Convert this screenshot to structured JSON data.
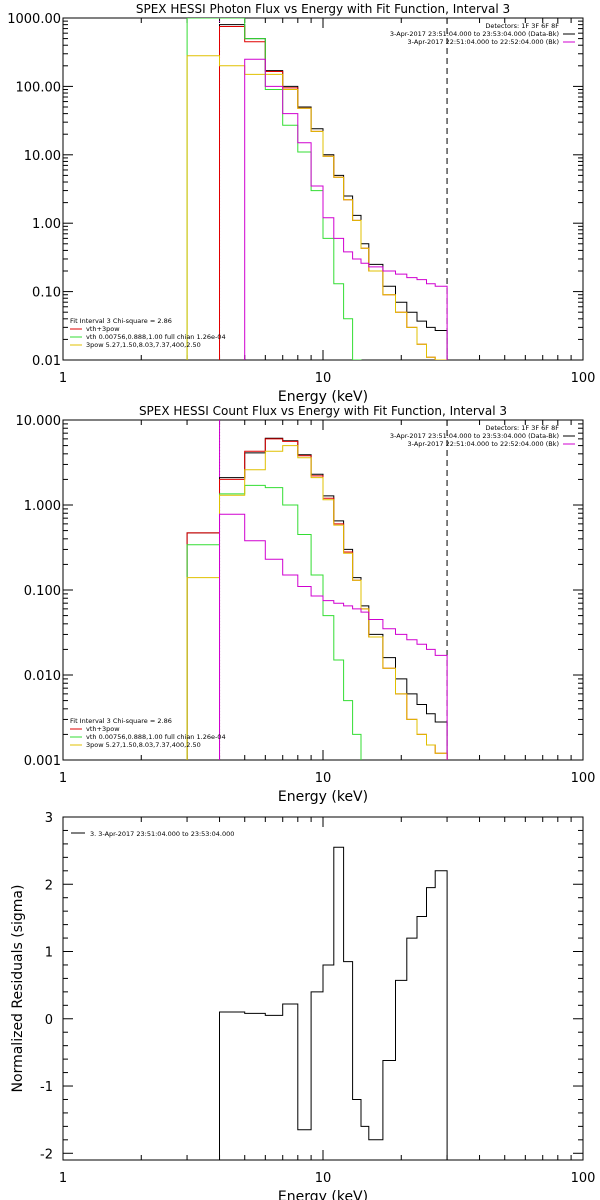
{
  "colors": {
    "black": "#000000",
    "red": "#e00000",
    "green": "#33dd33",
    "magenta": "#d000d0",
    "yellow": "#e0c000"
  },
  "chart_data": [
    {
      "type": "line",
      "title": "SPEX HESSI Photon Flux vs Energy with Fit Function, Interval 3",
      "xlabel": "Energy (keV)",
      "ylabel": "",
      "xscale": "log",
      "yscale": "log",
      "xlim": [
        1,
        100
      ],
      "ylim": [
        0.01,
        1000
      ],
      "x_ticks": [
        "1",
        "10",
        "100"
      ],
      "y_ticks": [
        "0.01",
        "0.10",
        "1.00",
        "10.00",
        "100.00",
        "1000.00"
      ],
      "vlines": [
        {
          "x": 4.0,
          "style": "dotted",
          "color": "magenta"
        },
        {
          "x": 30.0,
          "style": "dashed",
          "color": "black"
        }
      ],
      "legend_top_right": [
        "Detectors: 1F 3F 6F 8F",
        "3-Apr-2017 23:51:04.000 to 23:53:04.000 (Data-Bk)",
        "3-Apr-2017 22:51:04.000 to 22:52:04.000 (Bk)"
      ],
      "legend_bottom_left": [
        "Fit Interval 3   Chi-square = 2.86",
        "vth+3pow",
        "vth 0.00756,0.888,1.00   full chian 1.26e-04",
        "3pow 5.27,1.50,8.03,7.37,400,2.50"
      ],
      "series": [
        {
          "name": "",
          "color": "black",
          "bin_edges": [
            4,
            5,
            6,
            7,
            8,
            9,
            10,
            11,
            12,
            13,
            14,
            15,
            17,
            19,
            21,
            23,
            25,
            27,
            30
          ],
          "values": [
            800,
            500,
            170,
            100,
            50,
            24,
            10,
            5,
            2.5,
            1.3,
            0.5,
            0.25,
            0.12,
            0.07,
            0.05,
            0.037,
            0.03,
            0.027
          ]
        },
        {
          "name": "",
          "color": "red",
          "bin_edges": [
            4,
            5,
            6,
            7,
            8,
            9,
            10,
            11,
            12,
            13,
            14,
            15,
            17,
            19,
            21,
            23,
            25,
            27,
            30
          ],
          "values": [
            750,
            450,
            165,
            95,
            48,
            22,
            9.5,
            4.7,
            2.2,
            1.1,
            0.43,
            0.2,
            0.09,
            0.05,
            0.03,
            0.017,
            0.011,
            0.008
          ]
        },
        {
          "name": "",
          "color": "green",
          "bin_edges": [
            3,
            4,
            5,
            6,
            7,
            8,
            9,
            10,
            11,
            12,
            13,
            14
          ],
          "values": [
            2000,
            1200,
            500,
            90,
            27,
            11,
            3,
            0.6,
            0.13,
            0.04,
            0.007
          ]
        },
        {
          "name": "",
          "color": "yellow",
          "bin_edges": [
            3,
            4,
            5,
            6,
            7,
            8,
            9,
            10,
            11,
            12,
            13,
            14,
            15,
            17,
            19,
            21,
            23,
            25,
            27,
            30
          ],
          "values": [
            280,
            200,
            150,
            150,
            90,
            48,
            22,
            9.5,
            4.7,
            2.2,
            1.1,
            0.43,
            0.2,
            0.09,
            0.05,
            0.03,
            0.017,
            0.011,
            0.008
          ]
        },
        {
          "name": "",
          "color": "magenta",
          "bin_edges": [
            5,
            6,
            7,
            8,
            9,
            10,
            11,
            12,
            13,
            14,
            15,
            17,
            19,
            21,
            23,
            25,
            27,
            30
          ],
          "values": [
            250,
            100,
            40,
            15,
            3.5,
            1.2,
            0.6,
            0.38,
            0.3,
            0.26,
            0.23,
            0.2,
            0.18,
            0.16,
            0.15,
            0.13,
            0.12
          ]
        }
      ]
    },
    {
      "type": "line",
      "title": "SPEX HESSI Count Flux vs Energy with Fit Function, Interval 3",
      "xlabel": "Energy (keV)",
      "ylabel": "",
      "xscale": "log",
      "yscale": "log",
      "xlim": [
        1,
        100
      ],
      "ylim": [
        0.001,
        10
      ],
      "x_ticks": [
        "1",
        "10",
        "100"
      ],
      "y_ticks": [
        "0.001",
        "0.010",
        "0.100",
        "1.000",
        "10.000"
      ],
      "vlines": [
        {
          "x": 4.0,
          "style": "dotted",
          "color": "black"
        },
        {
          "x": 4.0,
          "style": "solid",
          "color": "magenta"
        },
        {
          "x": 30.0,
          "style": "dashed",
          "color": "black"
        }
      ],
      "legend_top_right": [
        "Detectors: 1F 3F 6F 8F",
        "3-Apr-2017 23:51:04.000 to 23:53:04.000 (Data-Bk)",
        "3-Apr-2017 22:51:04.000 to 22:52:04.000 (Bk)"
      ],
      "legend_bottom_left": [
        "Fit Interval 3   Chi-square = 2.86",
        "vth+3pow",
        "vth 0.00756,0.888,1.00   full chian 1.26e-04",
        "3pow 5.27,1.50,8.03,7.37,400,2.50"
      ],
      "series": [
        {
          "name": "",
          "color": "black",
          "bin_edges": [
            3,
            4,
            5,
            6,
            7,
            8,
            9,
            10,
            11,
            12,
            13,
            14,
            15,
            17,
            19,
            21,
            23,
            25,
            27,
            30
          ],
          "values": [
            0.47,
            2.1,
            4.1,
            6.1,
            5.7,
            3.9,
            2.3,
            1.28,
            0.65,
            0.3,
            0.14,
            0.065,
            0.03,
            0.016,
            0.009,
            0.006,
            0.0045,
            0.0035,
            0.0028
          ]
        },
        {
          "name": "",
          "color": "red",
          "bin_edges": [
            3,
            4,
            5,
            6,
            7,
            8,
            9,
            10,
            11,
            12,
            13,
            14,
            15,
            17,
            19,
            21,
            23,
            25,
            27,
            30
          ],
          "values": [
            0.47,
            2.0,
            4.3,
            6.0,
            5.6,
            3.8,
            2.2,
            1.2,
            0.6,
            0.28,
            0.13,
            0.06,
            0.028,
            0.012,
            0.006,
            0.003,
            0.002,
            0.0015,
            0.0012
          ]
        },
        {
          "name": "",
          "color": "green",
          "bin_edges": [
            3,
            4,
            5,
            6,
            7,
            8,
            9,
            10,
            11,
            12,
            13,
            14
          ],
          "values": [
            0.34,
            1.35,
            1.7,
            1.6,
            1.0,
            0.45,
            0.15,
            0.05,
            0.015,
            0.005,
            0.002
          ]
        },
        {
          "name": "",
          "color": "yellow",
          "bin_edges": [
            3,
            4,
            5,
            6,
            7,
            8,
            9,
            10,
            11,
            12,
            13,
            14,
            15,
            17,
            19,
            21,
            23,
            25,
            27,
            30
          ],
          "values": [
            0.14,
            1.3,
            2.6,
            4.3,
            5.0,
            3.6,
            2.1,
            1.15,
            0.58,
            0.27,
            0.13,
            0.06,
            0.028,
            0.012,
            0.006,
            0.003,
            0.002,
            0.0015,
            0.0012
          ]
        },
        {
          "name": "",
          "color": "magenta",
          "bin_edges": [
            4,
            5,
            6,
            7,
            8,
            9,
            10,
            11,
            12,
            13,
            14,
            15,
            17,
            19,
            21,
            23,
            25,
            27,
            30
          ],
          "values": [
            0.78,
            0.38,
            0.23,
            0.15,
            0.11,
            0.085,
            0.075,
            0.07,
            0.065,
            0.06,
            0.055,
            0.045,
            0.035,
            0.03,
            0.026,
            0.023,
            0.02,
            0.017
          ]
        }
      ]
    },
    {
      "type": "line",
      "title": "",
      "xlabel": "Energy (keV)",
      "ylabel": "Normalized Residuals (sigma)",
      "xscale": "log",
      "yscale": "linear",
      "xlim": [
        1,
        100
      ],
      "ylim": [
        -2.1,
        3.0
      ],
      "x_ticks": [
        "1",
        "10",
        "100"
      ],
      "y_ticks": [
        "-2",
        "-1",
        "0",
        "1",
        "2",
        "3"
      ],
      "legend_top_left": [
        "3.  3-Apr-2017 23:51:04.000 to 23:53:04.000"
      ],
      "series": [
        {
          "name": "",
          "color": "black",
          "bin_edges": [
            4,
            5,
            6,
            7,
            8,
            9,
            10,
            11,
            12,
            13,
            14,
            15,
            17,
            19,
            21,
            23,
            25,
            27,
            30
          ],
          "values": [
            0.1,
            0.08,
            0.05,
            0.22,
            -1.65,
            0.4,
            0.8,
            2.55,
            0.85,
            -1.2,
            -1.6,
            -1.8,
            -0.62,
            0.57,
            1.2,
            1.52,
            1.95,
            2.2
          ]
        }
      ]
    }
  ]
}
